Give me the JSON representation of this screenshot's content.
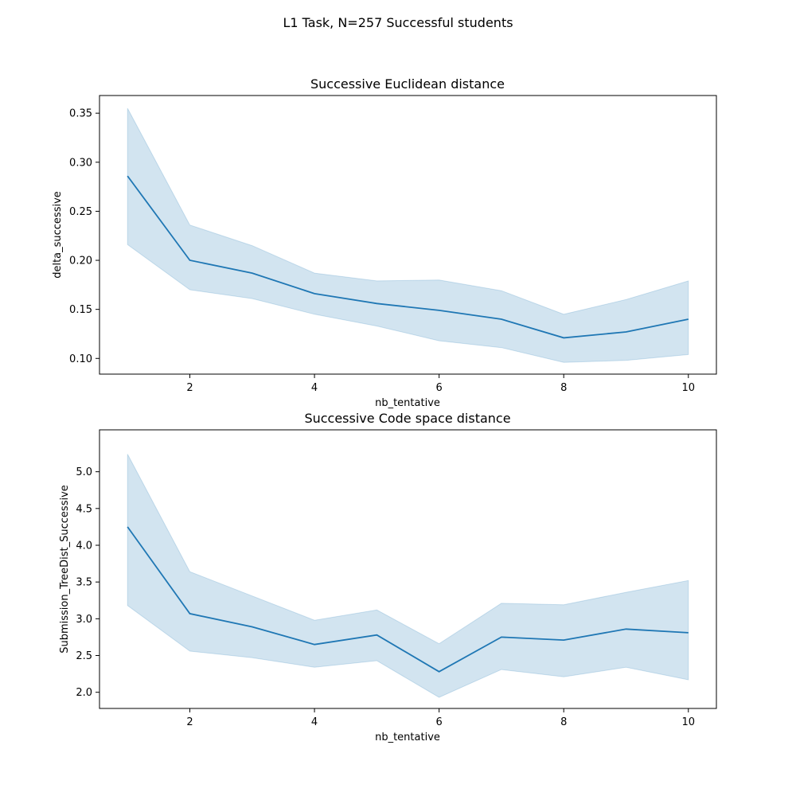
{
  "figure": {
    "suptitle": "L1 Task, N=257 Successful students"
  },
  "chart_data": [
    {
      "type": "line",
      "title": "Successive Euclidean distance",
      "xlabel": "nb_tentative",
      "ylabel": "delta_successive",
      "x": [
        1,
        2,
        3,
        4,
        5,
        6,
        7,
        8,
        9,
        10
      ],
      "series": [
        {
          "values": [
            0.286,
            0.2,
            0.187,
            0.166,
            0.156,
            0.149,
            0.14,
            0.121,
            0.127,
            0.14
          ],
          "ci_lower": [
            0.216,
            0.17,
            0.161,
            0.145,
            0.133,
            0.118,
            0.111,
            0.096,
            0.098,
            0.104
          ],
          "ci_upper": [
            0.355,
            0.236,
            0.215,
            0.187,
            0.179,
            0.18,
            0.169,
            0.145,
            0.16,
            0.179
          ],
          "color": "#1f77b4"
        }
      ],
      "xlim": [
        0.55,
        10.45
      ],
      "ylim": [
        0.084,
        0.368
      ],
      "xticks": [
        2,
        4,
        6,
        8,
        10
      ],
      "yticks": [
        0.1,
        0.15,
        0.2,
        0.25,
        0.3,
        0.35
      ],
      "ytick_labels": [
        "0.10",
        "0.15",
        "0.20",
        "0.25",
        "0.30",
        "0.35"
      ],
      "grid": false
    },
    {
      "type": "line",
      "title": "Successive Code space distance",
      "xlabel": "nb_tentative",
      "ylabel": "Submission_TreeDist_Successive",
      "x": [
        1,
        2,
        3,
        4,
        5,
        6,
        7,
        8,
        9,
        10
      ],
      "series": [
        {
          "values": [
            4.25,
            3.07,
            2.89,
            2.65,
            2.78,
            2.28,
            2.75,
            2.71,
            2.86,
            2.81
          ],
          "ci_lower": [
            3.18,
            2.56,
            2.47,
            2.34,
            2.43,
            1.93,
            2.31,
            2.21,
            2.34,
            2.17
          ],
          "ci_upper": [
            5.24,
            3.64,
            3.31,
            2.98,
            3.12,
            2.66,
            3.21,
            3.19,
            3.36,
            3.52
          ],
          "color": "#1f77b4"
        }
      ],
      "xlim": [
        0.55,
        10.45
      ],
      "ylim": [
        1.78,
        5.57
      ],
      "xticks": [
        2,
        4,
        6,
        8,
        10
      ],
      "yticks": [
        2.0,
        2.5,
        3.0,
        3.5,
        4.0,
        4.5,
        5.0
      ],
      "ytick_labels": [
        "2.0",
        "2.5",
        "3.0",
        "3.5",
        "4.0",
        "4.5",
        "5.0"
      ],
      "grid": false
    }
  ]
}
